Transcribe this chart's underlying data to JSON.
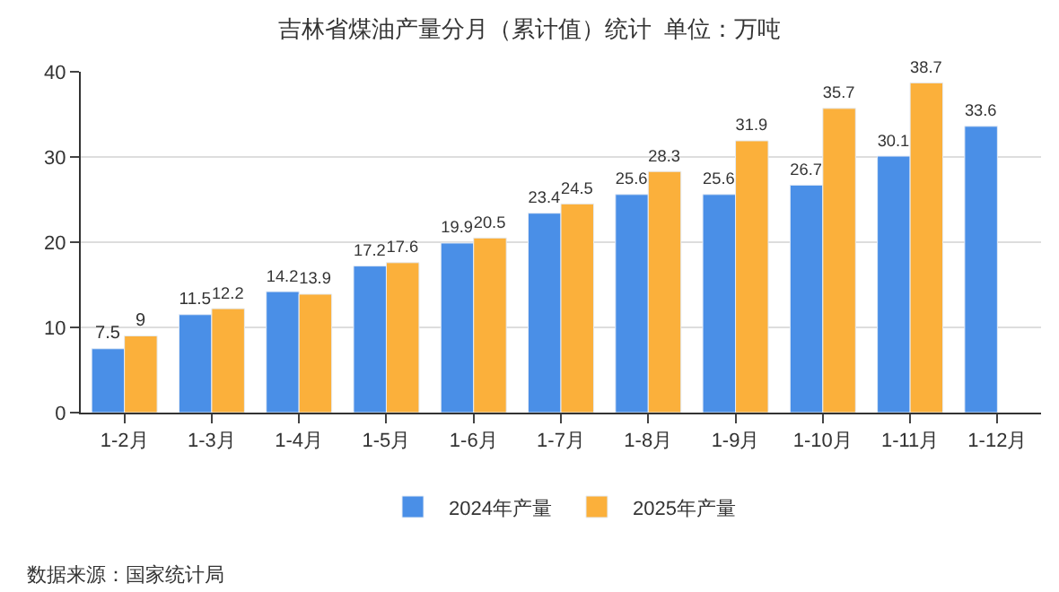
{
  "chart_data": {
    "type": "bar",
    "title": "吉林省煤油产量分月（累计值）统计  单位：万吨",
    "categories": [
      "1-2月",
      "1-3月",
      "1-4月",
      "1-5月",
      "1-6月",
      "1-7月",
      "1-8月",
      "1-9月",
      "1-10月",
      "1-11月",
      "1-12月"
    ],
    "series": [
      {
        "name": "2024年产量",
        "color": "#4a8fe7",
        "values": [
          7.5,
          11.5,
          14.2,
          17.2,
          19.9,
          23.4,
          25.6,
          25.6,
          26.7,
          30.1,
          33.6
        ]
      },
      {
        "name": "2025年产量",
        "color": "#fbb03b",
        "values": [
          9,
          12.2,
          13.9,
          17.6,
          20.5,
          24.5,
          28.3,
          31.9,
          35.7,
          38.7,
          null
        ]
      }
    ],
    "ylim": [
      0,
      40
    ],
    "yticks": [
      0,
      10,
      20,
      30,
      40
    ],
    "grid": "y",
    "legend": "bottom",
    "data_labels": true,
    "annotations": [
      "数据来源：国家统计局"
    ]
  }
}
